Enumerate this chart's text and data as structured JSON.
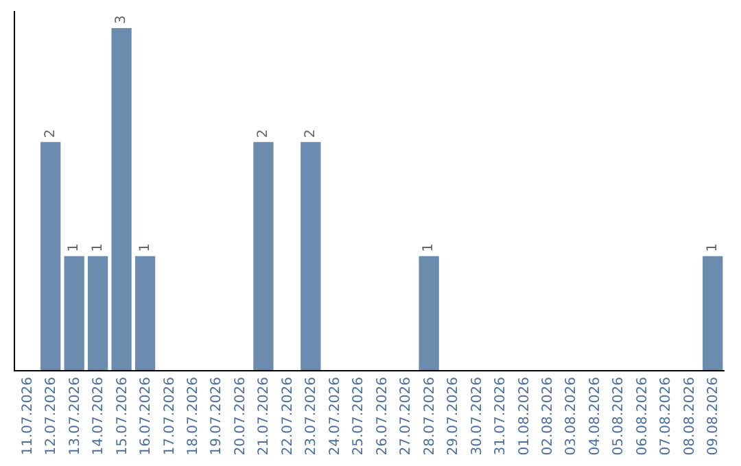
{
  "chart_data": {
    "type": "bar",
    "categories": [
      "11.07.2026",
      "12.07.2026",
      "13.07.2026",
      "14.07.2026",
      "15.07.2026",
      "16.07.2026",
      "17.07.2026",
      "18.07.2026",
      "19.07.2026",
      "20.07.2026",
      "21.07.2026",
      "22.07.2026",
      "23.07.2026",
      "24.07.2026",
      "25.07.2026",
      "26.07.2026",
      "27.07.2026",
      "28.07.2026",
      "29.07.2026",
      "30.07.2026",
      "31.07.2026",
      "01.08.2026",
      "02.08.2026",
      "03.08.2026",
      "04.08.2026",
      "05.08.2026",
      "06.08.2026",
      "07.08.2026",
      "08.08.2026",
      "09.08.2026"
    ],
    "values": [
      0,
      2,
      1,
      1,
      3,
      1,
      0,
      0,
      0,
      0,
      2,
      0,
      2,
      0,
      0,
      0,
      0,
      1,
      0,
      0,
      0,
      0,
      0,
      0,
      0,
      0,
      0,
      0,
      0,
      1
    ],
    "value_labels": [
      null,
      "2",
      "1",
      "1",
      "3",
      "1",
      null,
      null,
      null,
      null,
      "2",
      null,
      "2",
      null,
      null,
      null,
      null,
      "1",
      null,
      null,
      null,
      null,
      null,
      null,
      null,
      null,
      null,
      null,
      null,
      "1"
    ],
    "color": "#6b8cae",
    "ylim": [
      0,
      3.15
    ],
    "tick_labels": "x"
  }
}
